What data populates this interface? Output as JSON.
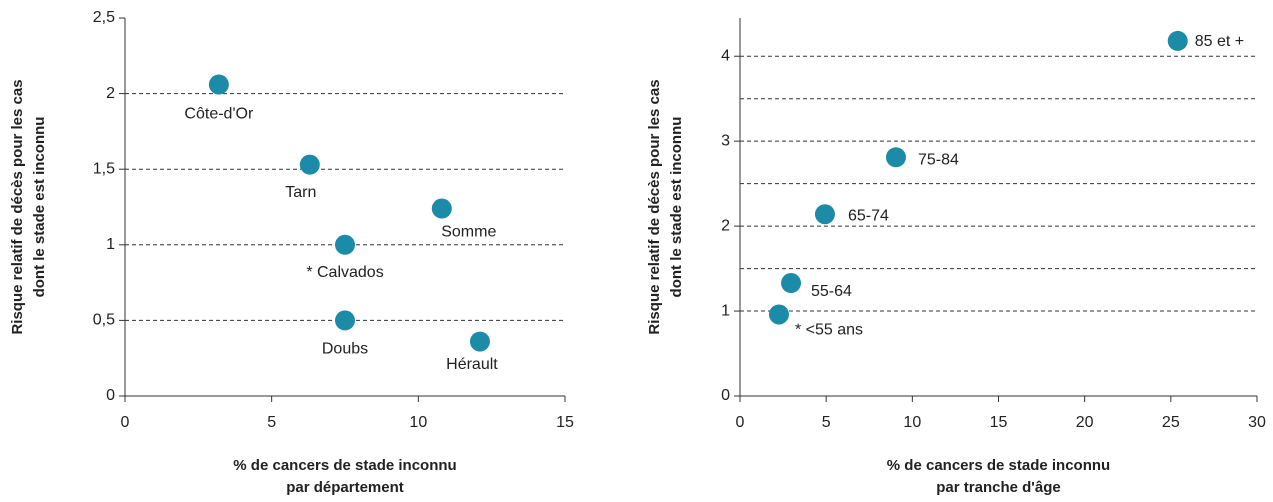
{
  "chart_data": [
    {
      "type": "scatter",
      "ylabel": [
        "Risque relatif de décès pour les cas",
        "dont le stade est inconnu"
      ],
      "xlabel": [
        "% de cancers de stade inconnu",
        "par département"
      ],
      "x": [
        3.2,
        6.3,
        10.8,
        7.5,
        7.5,
        12.1
      ],
      "values": [
        2.06,
        1.53,
        1.24,
        1.0,
        0.5,
        0.36
      ],
      "labels": [
        "Côte-d'Or",
        "Tarn",
        "Somme",
        "* Calvados",
        "Doubs",
        "Hérault"
      ],
      "color": "#1b8ba8",
      "xlim": [
        0,
        15
      ],
      "xticks": [
        0,
        5,
        10,
        15
      ],
      "ylim": [
        0,
        2.5
      ],
      "yticks": [
        0,
        {
          "value": 0.5,
          "label": "0,5"
        },
        1,
        {
          "value": 1.5,
          "label": "1,5"
        },
        2,
        {
          "value": 2.5,
          "label": "2,5"
        }
      ],
      "ygrid": [
        0,
        0.5,
        1,
        1.5,
        2
      ]
    },
    {
      "type": "scatter",
      "ylabel": [
        "Risque relatif de décès pour les cas",
        "dont le stade est inconnu"
      ],
      "xlabel": [
        "% de cancers de stade inconnu",
        "par tranche d'âge"
      ],
      "x": [
        25.4,
        9.05,
        4.93,
        2.96,
        2.26
      ],
      "values": [
        4.18,
        2.81,
        2.14,
        1.33,
        0.96
      ],
      "labels": [
        "85 et +",
        "75-84",
        "65-74",
        "55-64",
        "* <55 ans"
      ],
      "color": "#1b8ba8",
      "xlim": [
        0,
        30
      ],
      "xticks": [
        0,
        5,
        10,
        15,
        20,
        25,
        30
      ],
      "ylim": [
        0,
        4.45
      ],
      "yticks": [
        0,
        1,
        2,
        3,
        4
      ],
      "ygrid": [
        1,
        1.5,
        2,
        2.5,
        3,
        3.5,
        4
      ]
    }
  ]
}
